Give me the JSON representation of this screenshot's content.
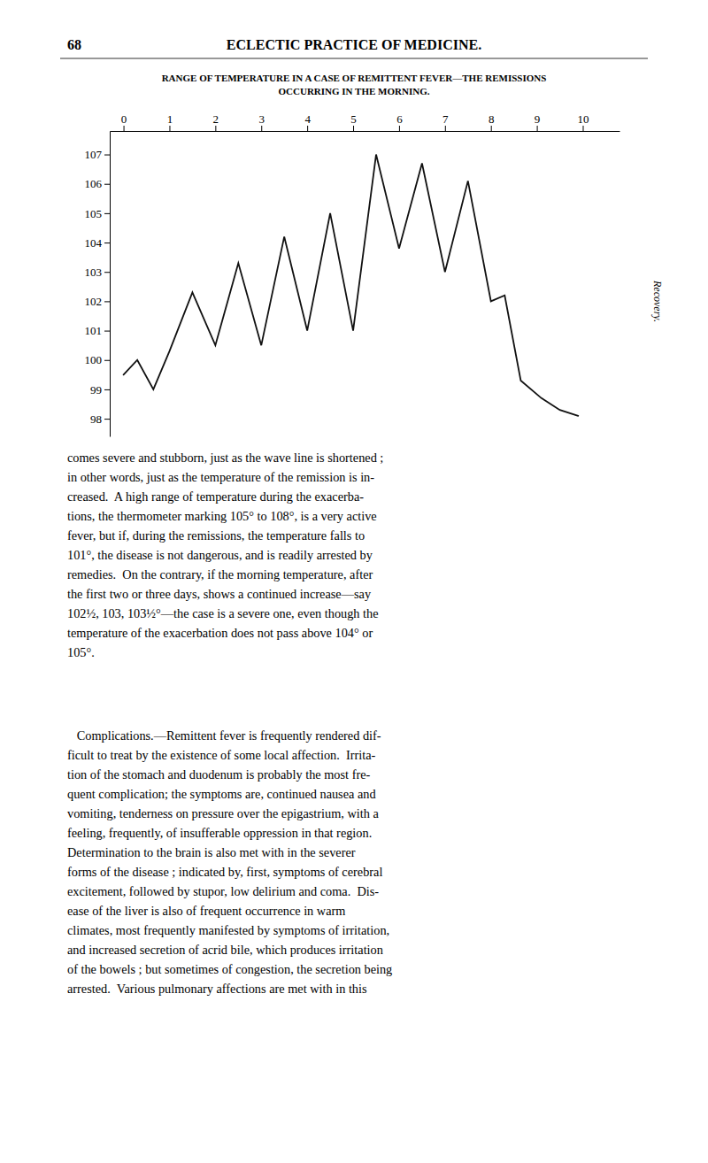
{
  "page_header": "68",
  "book_title": "ECLECTIC PRACTICE OF MEDICINE.",
  "body_text": [
    [
      "comes severe and stubborn, just as the wave line is shortened ;",
      "in other words, just as the temperature of the remission is in-",
      "creased.  A high range of temperature during the exacerba-",
      "tions, the thermometer marking 105° to 108°, is a very ​active",
      "fever, but if, during the remissions, the temperature falls to",
      "101°, the disease is not dangerous, and is readily arrested by",
      "remedies.  On the contrary, if the morning temperature, after",
      "the first two or three days, shows a continued increase—say",
      "102½, 103, 103½°—the case is a severe one, even though the",
      "temperature of the exacerbation does not pass above 104° or",
      "105°."
    ],
    [
      "   Complications.—Remittent fever is frequently rendered dif-",
      "ficult to treat by the existence of some local affection.  Irrita-",
      "tion of the stomach and duodenum is probably the most fre-",
      "quent complication; the symptoms are, continued nausea and",
      "vomiting, tenderness on pressure over the epigastrium, with a",
      "feeling, frequently, of insufferable oppression in that region.",
      "Determination to the brain is also met with in the severer",
      "forms of the disease ; indicated by, first, symptoms of cerebral",
      "excitement, followed by stupor, low delirium and coma.  Dis-",
      "ease of the liver is also of frequent occurrence in warm",
      "climates, most frequently manifested by symptoms of irritation,",
      "and increased secretion of acrid bile, which produces irritation",
      "of the bowels ; but sometimes of congestion, the secretion being",
      "arrested.  Various pulmonary affections are met with in this"
    ]
  ],
  "chart_data": {
    "type": "line",
    "title": [
      "RANGE OF TEMPERATURE IN A CASE OF REMITTENT FEVER—THE REMISSIONS",
      "OCCURRING IN THE MORNING."
    ],
    "x": [
      0.0,
      0.3,
      0.65,
      1.0,
      1.5,
      2.0,
      2.5,
      3.0,
      3.5,
      4.0,
      4.5,
      5.0,
      5.5,
      6.0,
      6.5,
      7.0,
      7.5,
      8.0,
      8.3,
      8.65,
      9.1,
      9.5,
      9.9
    ],
    "values": [
      99.5,
      100.0,
      99.0,
      100.3,
      102.3,
      100.5,
      103.3,
      100.5,
      104.2,
      101.0,
      105.0,
      101.0,
      107.0,
      103.8,
      106.7,
      103.0,
      106.1,
      102.0,
      102.2,
      99.3,
      98.7,
      98.3,
      98.1
    ],
    "color": "#111111",
    "xlim": [
      -0.3,
      10.8
    ],
    "xticks": [
      0,
      1,
      2,
      3,
      4,
      5,
      6,
      7,
      8,
      9,
      10
    ],
    "ylim": [
      97.4,
      107.8
    ],
    "yticks": [
      98,
      99,
      100,
      101,
      102,
      103,
      104,
      105,
      106,
      107
    ],
    "grid": false,
    "annotations": [
      "Recovery."
    ]
  }
}
